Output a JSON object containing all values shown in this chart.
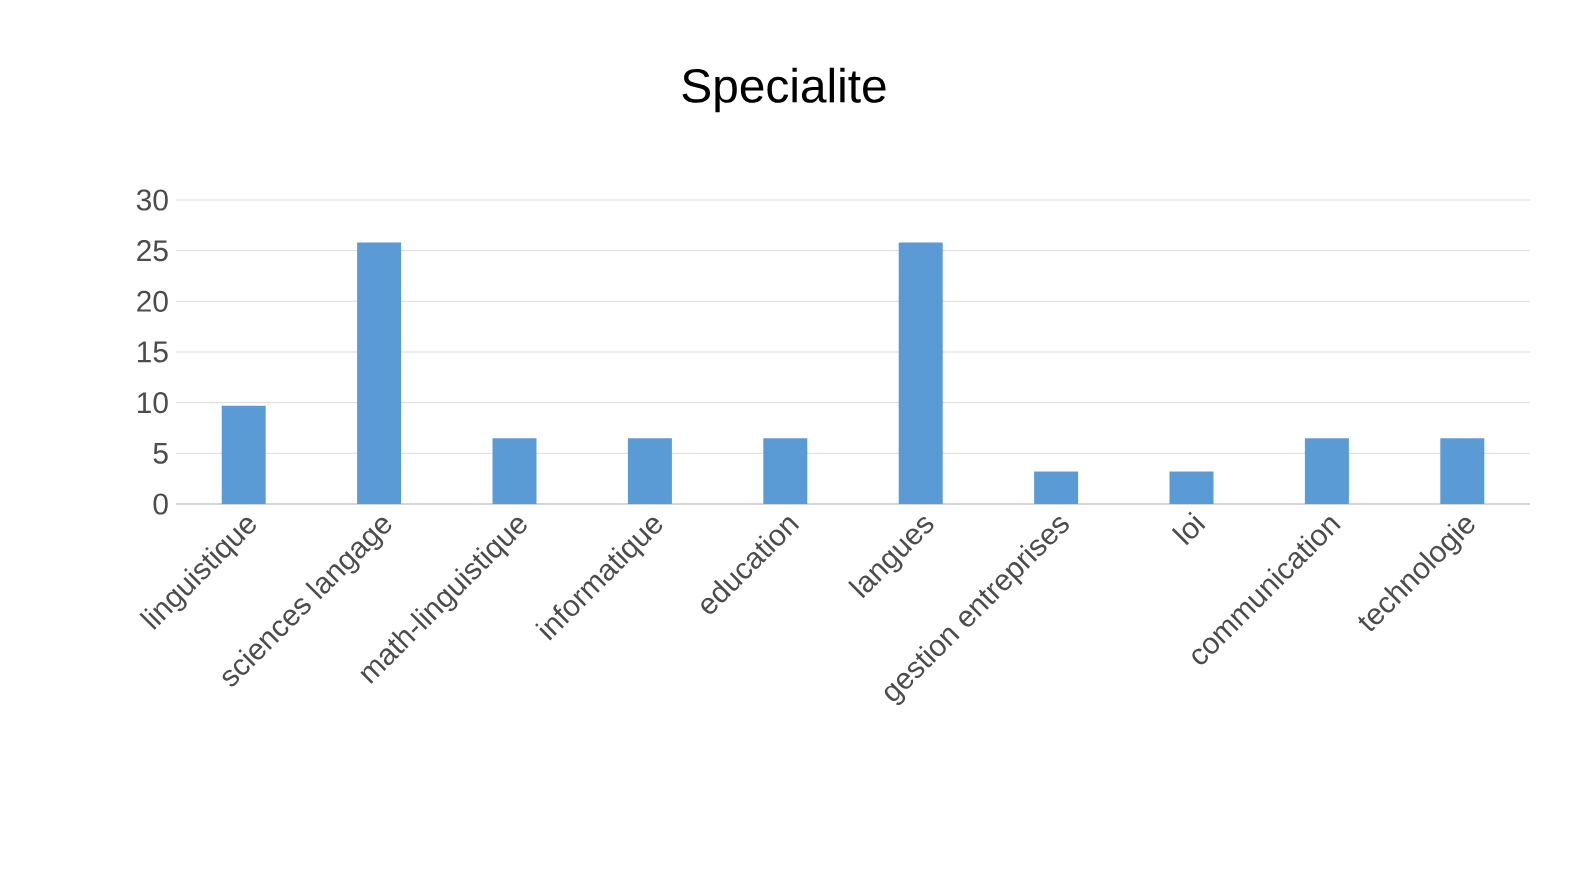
{
  "chart_data": {
    "type": "bar",
    "title": "Specialite",
    "categories": [
      "linguistique",
      "sciences langage",
      "math-linguistique",
      "informatique",
      "education",
      "langues",
      "gestion entreprises",
      "loi",
      "communication",
      "technologie"
    ],
    "values": [
      9.7,
      25.8,
      6.5,
      6.5,
      6.5,
      25.8,
      3.2,
      3.2,
      6.5,
      6.5
    ],
    "color": "#5b9bd5",
    "ylim": [
      0,
      30
    ],
    "yticks": [
      0,
      5,
      10,
      15,
      20,
      25,
      30
    ],
    "grid": "y"
  }
}
